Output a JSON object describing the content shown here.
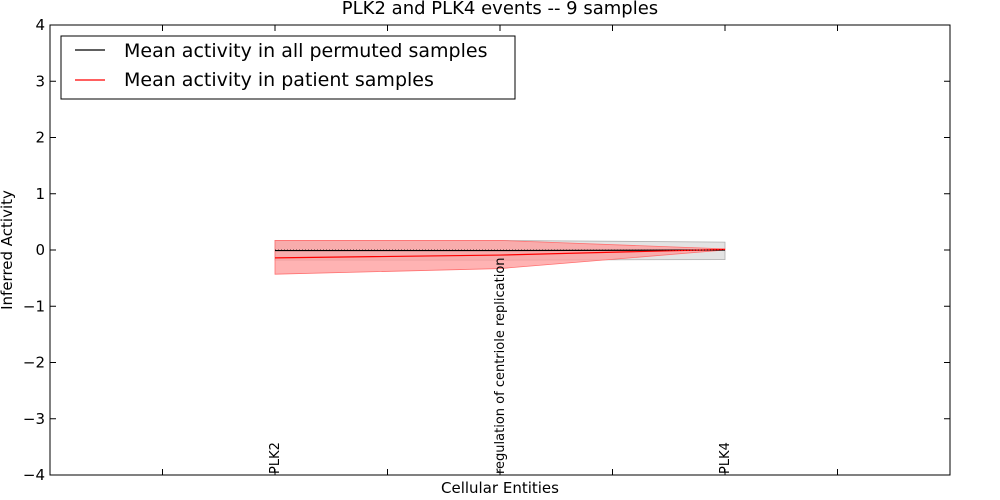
{
  "chart_data": {
    "type": "line",
    "title": "PLK2 and PLK4 events -- 9 samples",
    "xlabel": "Cellular Entities",
    "ylabel": "Inferred Activity",
    "ylim": [
      -4,
      4
    ],
    "y_ticks": [
      -4,
      -3,
      -2,
      -1,
      0,
      1,
      2,
      3,
      4
    ],
    "y_tick_labels": [
      "−4",
      "−3",
      "−2",
      "−1",
      "0",
      "1",
      "2",
      "3",
      "4"
    ],
    "xlim": [
      -2,
      6
    ],
    "x_ticks": [
      -2,
      -1,
      0,
      1,
      2,
      3,
      4,
      5,
      6
    ],
    "categories": [
      "PLK2",
      "regulation of centriole replication",
      "PLK4"
    ],
    "category_x": [
      0,
      2,
      4
    ],
    "grid": false,
    "legend_position": "top-left",
    "series": [
      {
        "name": "Mean activity in all permuted samples",
        "color": "#000000",
        "values": [
          -0.01,
          -0.01,
          0.0
        ],
        "band_upper": [
          0.17,
          0.17,
          0.14
        ],
        "band_lower": [
          -0.18,
          -0.18,
          -0.17
        ],
        "band_color": "#cccccc"
      },
      {
        "name": "Mean activity in patient samples",
        "color": "#ff0000",
        "values": [
          -0.14,
          -0.09,
          0.01
        ],
        "band_upper": [
          0.17,
          0.17,
          0.02
        ],
        "band_lower": [
          -0.43,
          -0.33,
          0.0
        ],
        "band_color": "#ff9999"
      }
    ]
  }
}
